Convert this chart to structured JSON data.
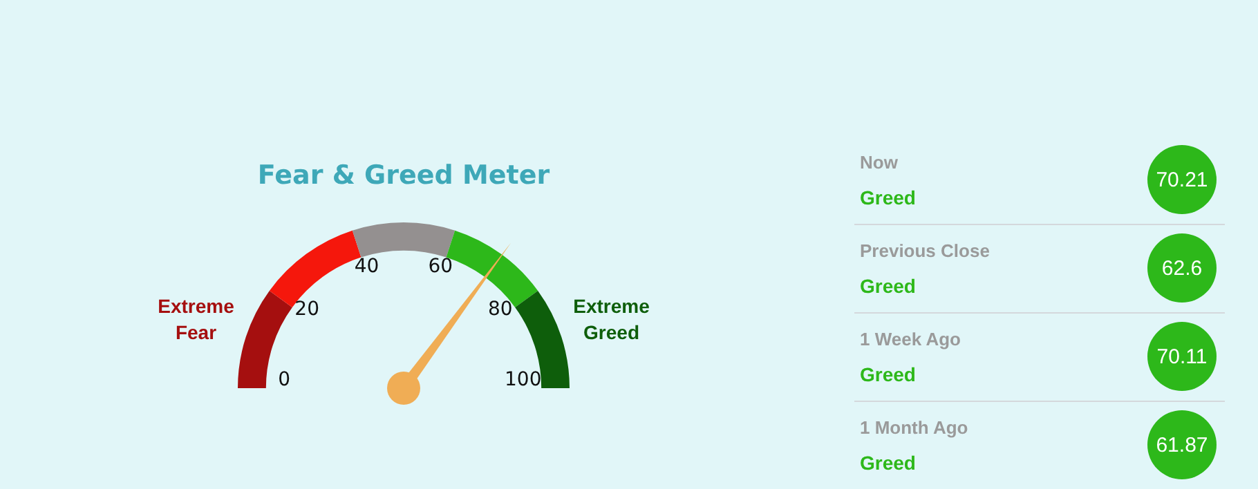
{
  "chart_data": [
    {
      "type": "donut",
      "title": "Fear & Greed Meter",
      "categories": [
        "Extreme Fear",
        null,
        null,
        null,
        "Extreme Greed"
      ],
      "values": [
        20,
        20,
        20,
        20,
        20
      ],
      "colors": [
        "#a50f0f",
        "#f5170c",
        "#949090",
        "#2db81a",
        "#0e5e0b"
      ],
      "annotations": [
        "0",
        "20",
        "40",
        "60",
        "80",
        "100"
      ]
    },
    {
      "type": "other",
      "categories": [
        "Now",
        "Previous Close",
        "1 Week Ago",
        "1 Month Ago"
      ],
      "values": [
        70.21,
        62.6,
        70.11,
        61.87
      ],
      "colors": [
        "#2db81a",
        "#2db81a",
        "#2db81a",
        "#2db81a"
      ],
      "data_labels": true,
      "annotations": [
        "Greed",
        "Greed",
        "Greed",
        "Greed"
      ]
    }
  ]
}
